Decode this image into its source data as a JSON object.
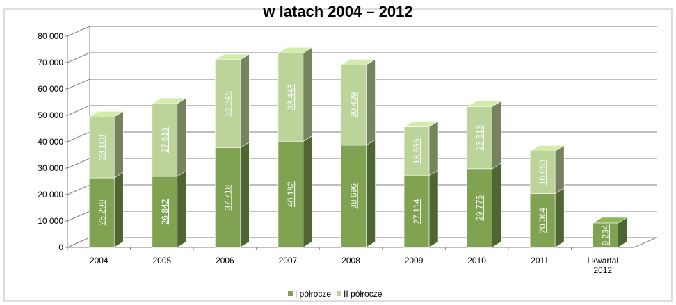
{
  "chart_data": {
    "type": "bar",
    "stacked": true,
    "three_d": true,
    "title": "w latach 2004 – 2012",
    "categories": [
      [
        "2004"
      ],
      [
        "2005"
      ],
      [
        "2006"
      ],
      [
        "2007"
      ],
      [
        "2008"
      ],
      [
        "2009"
      ],
      [
        "2010"
      ],
      [
        "2011"
      ],
      [
        "I kwartał",
        "2012"
      ]
    ],
    "series": [
      {
        "name": "I półrocze",
        "color": "#7fa350",
        "values": [
          26299,
          26842,
          37718,
          40182,
          38696,
          27114,
          29775,
          20364,
          9234
        ],
        "labels": [
          "26 299",
          "26 842",
          "37 718",
          "40 182",
          "38 696",
          "27 114",
          "29 775",
          "20 364",
          "9 234"
        ]
      },
      {
        "name": "II półrocze",
        "color": "#bcd39a",
        "values": [
          23108,
          27616,
          33345,
          33443,
          30439,
          18555,
          23513,
          16093,
          null
        ],
        "labels": [
          "23 108",
          "27 616",
          "33 345",
          "33 443",
          "30 439",
          "18 555",
          "23 513",
          "16 093",
          null
        ]
      }
    ],
    "ylim": [
      0,
      80000
    ],
    "yticks": [
      0,
      10000,
      20000,
      30000,
      40000,
      50000,
      60000,
      70000,
      80000
    ],
    "ytick_labels": [
      "0",
      "10 000",
      "20 000",
      "30 000",
      "40 000",
      "50 000",
      "60 000",
      "70 000",
      "80 000"
    ],
    "grid": true,
    "legend_position": "bottom"
  }
}
